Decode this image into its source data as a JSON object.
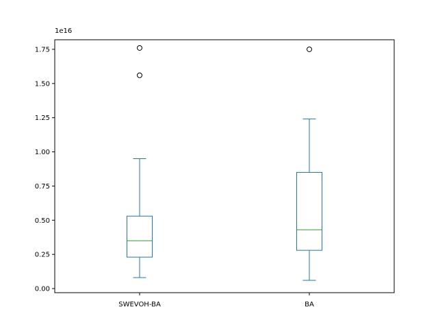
{
  "chart_data": {
    "type": "box",
    "categories": [
      "SWEVOH-BA",
      "BA"
    ],
    "y_scale_label": "1e16",
    "yticks": [
      0.0,
      0.25,
      0.5,
      0.75,
      1.0,
      1.25,
      1.5,
      1.75
    ],
    "ytick_labels": [
      "0.00",
      "0.25",
      "0.50",
      "0.75",
      "1.00",
      "1.25",
      "1.50",
      "1.75"
    ],
    "ylim": [
      -0.03,
      1.82
    ],
    "grid": false,
    "boxes": [
      {
        "name": "SWEVOH-BA",
        "whisker_low": 0.08,
        "q1": 0.23,
        "median": 0.35,
        "q3": 0.53,
        "whisker_high": 0.95,
        "outliers": [
          1.56,
          1.76
        ]
      },
      {
        "name": "BA",
        "whisker_low": 0.06,
        "q1": 0.28,
        "median": 0.43,
        "q3": 0.85,
        "whisker_high": 1.24,
        "outliers": [
          1.75
        ]
      }
    ],
    "colors": {
      "box": "#1f77b4",
      "median": "#2ca02c",
      "outlier": "#000000"
    }
  }
}
